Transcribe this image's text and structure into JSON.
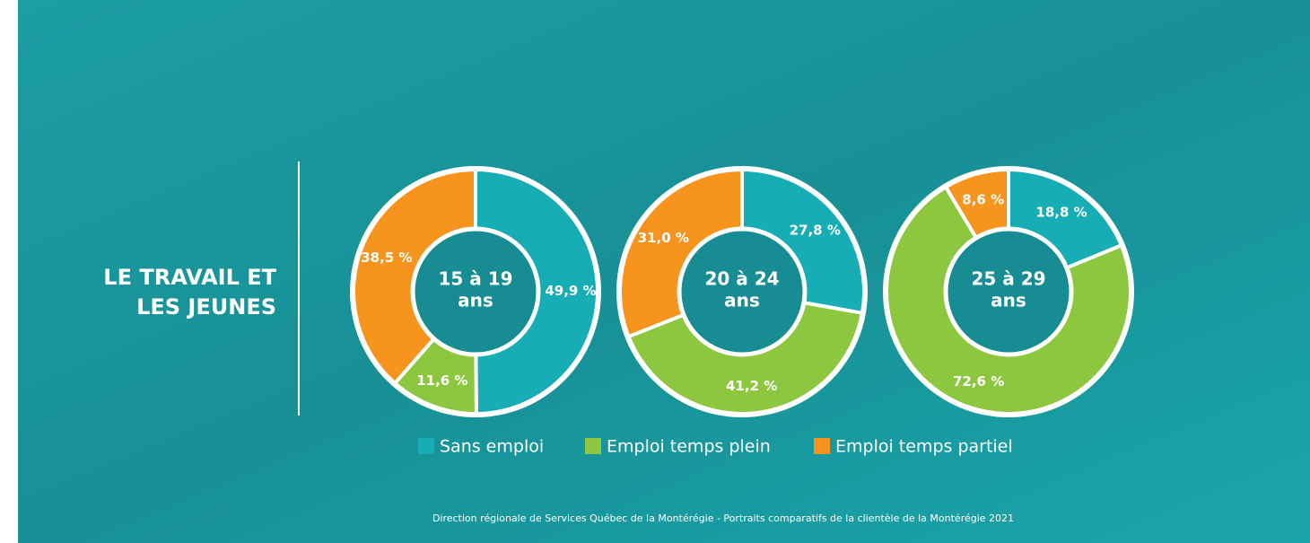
{
  "title": [
    "LE TRAVAIL ET",
    "LES JEUNES"
  ],
  "legend": {
    "labels": [
      "Sans emploi",
      "Emploi temps plein",
      "Emploi temps partiel"
    ],
    "colors": [
      "#17adb5",
      "#8dc63f",
      "#f7941d"
    ]
  },
  "source": "Direction régionale de Services Québec de la Montérégie - Portraits comparatifs de la clientèle de la Montérégie 2021",
  "chart_data": [
    {
      "type": "pie",
      "donut": true,
      "center_label": [
        "15 à 19",
        "ans"
      ],
      "values": [
        49.9,
        11.6,
        38.5
      ],
      "value_labels": [
        "49,9 %",
        "11,6 %",
        "38,5 %"
      ]
    },
    {
      "type": "pie",
      "donut": true,
      "center_label": [
        "20 à 24",
        "ans"
      ],
      "values": [
        27.8,
        41.2,
        31.0
      ],
      "value_labels": [
        "27,8 %",
        "41,2 %",
        "31,0 %"
      ]
    },
    {
      "type": "pie",
      "donut": true,
      "center_label": [
        "25 à 29",
        "ans"
      ],
      "values": [
        18.8,
        72.6,
        8.6
      ],
      "value_labels": [
        "18,8 %",
        "72,6 %",
        "8,6 %"
      ]
    }
  ]
}
